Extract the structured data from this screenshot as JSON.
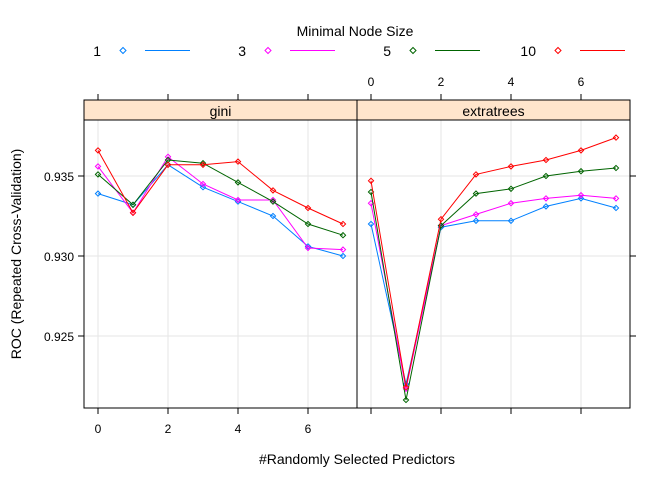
{
  "chart_data": {
    "type": "line",
    "legend": {
      "title": "Minimal Node Size",
      "placement": "top",
      "entries": [
        {
          "label": "1",
          "color": "#0080ff"
        },
        {
          "label": "3",
          "color": "#ff00ff"
        },
        {
          "label": "5",
          "color": "#006400"
        },
        {
          "label": "10",
          "color": "#ff0000"
        }
      ]
    },
    "xlabel": "#Randomly Selected Predictors",
    "ylabel": "ROC (Repeated Cross-Validation)",
    "xlim": [
      -0.4,
      7.4
    ],
    "ylim": [
      0.9205,
      0.9385
    ],
    "x_ticks": [
      0,
      2,
      4,
      6
    ],
    "x_tick_labels": [
      "0",
      "2",
      "4",
      "6"
    ],
    "y_ticks": [
      0.925,
      0.93,
      0.935
    ],
    "y_tick_labels": [
      "0.925",
      "0.930",
      "0.935"
    ],
    "grid": true,
    "x": [
      0,
      1,
      2,
      3,
      4,
      5,
      6,
      7
    ],
    "panels": [
      {
        "strip": "gini",
        "series": [
          {
            "name": "1",
            "values": [
              0.9339,
              0.9332,
              0.9357,
              0.9343,
              0.9334,
              0.9325,
              0.9306,
              0.93
            ]
          },
          {
            "name": "3",
            "values": [
              0.9356,
              0.9327,
              0.9362,
              0.9345,
              0.9335,
              0.9335,
              0.9305,
              0.9304
            ]
          },
          {
            "name": "5",
            "values": [
              0.9351,
              0.9332,
              0.936,
              0.9358,
              0.9346,
              0.9334,
              0.932,
              0.9313
            ]
          },
          {
            "name": "10",
            "values": [
              0.9366,
              0.9327,
              0.9357,
              0.9357,
              0.9359,
              0.9341,
              0.933,
              0.932
            ]
          }
        ]
      },
      {
        "strip": "extratrees",
        "series": [
          {
            "name": "1",
            "values": [
              0.932,
              0.922,
              0.9318,
              0.9322,
              0.9322,
              0.9331,
              0.9336,
              0.933
            ]
          },
          {
            "name": "3",
            "values": [
              0.9333,
              0.9217,
              0.9319,
              0.9326,
              0.9333,
              0.9336,
              0.9338,
              0.9336
            ]
          },
          {
            "name": "5",
            "values": [
              0.934,
              0.921,
              0.9319,
              0.9339,
              0.9342,
              0.935,
              0.9353,
              0.9355
            ]
          },
          {
            "name": "10",
            "values": [
              0.9347,
              0.9218,
              0.9323,
              0.9351,
              0.9356,
              0.936,
              0.9366,
              0.9374
            ]
          }
        ]
      }
    ]
  }
}
